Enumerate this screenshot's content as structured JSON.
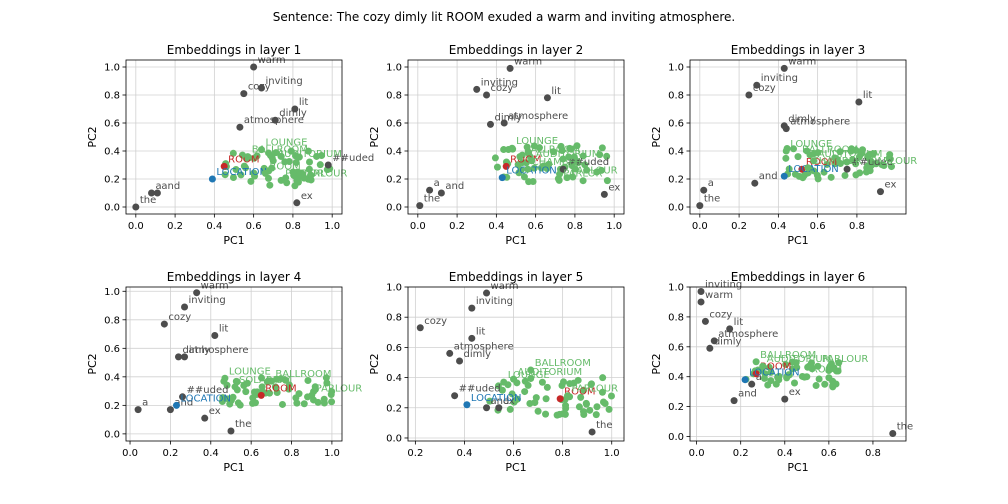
{
  "figure": {
    "suptitle": "Sentence: The cozy dimly lit ROOM exuded a warm and inviting atmosphere."
  },
  "colors": {
    "context": "#4d4d4d",
    "candidate": "#66bb6a",
    "target": "#c62828",
    "location": "#1f77b4",
    "grid": "#d0d0d0"
  },
  "chart_data": [
    {
      "type": "scatter",
      "title": "Embeddings in layer 1",
      "xlabel": "PC1",
      "ylabel": "PC2",
      "xlim": [
        -0.05,
        1.05
      ],
      "ylim": [
        -0.05,
        1.05
      ],
      "xticks": [
        "0.0",
        "0.2",
        "0.4",
        "0.6",
        "0.8",
        "1.0"
      ],
      "yticks": [
        "0.0",
        "0.2",
        "0.4",
        "0.6",
        "0.8",
        "1.0"
      ],
      "grid": true,
      "points": [
        {
          "label": "the",
          "x": 0.0,
          "y": 0.0,
          "kind": "context"
        },
        {
          "label": "a",
          "x": 0.08,
          "y": 0.1,
          "kind": "context"
        },
        {
          "label": "and",
          "x": 0.11,
          "y": 0.1,
          "kind": "context"
        },
        {
          "label": "warm",
          "x": 0.6,
          "y": 1.0,
          "kind": "context"
        },
        {
          "label": "cozy",
          "x": 0.55,
          "y": 0.81,
          "kind": "context"
        },
        {
          "label": "inviting",
          "x": 0.64,
          "y": 0.85,
          "kind": "context"
        },
        {
          "label": "lit",
          "x": 0.81,
          "y": 0.7,
          "kind": "context"
        },
        {
          "label": "dimly",
          "x": 0.71,
          "y": 0.62,
          "kind": "context"
        },
        {
          "label": "atmosphere",
          "x": 0.53,
          "y": 0.57,
          "kind": "context"
        },
        {
          "label": "##uded",
          "x": 0.98,
          "y": 0.3,
          "kind": "context"
        },
        {
          "label": "ex",
          "x": 0.82,
          "y": 0.03,
          "kind": "context"
        },
        {
          "label": "ROOM",
          "x": 0.45,
          "y": 0.29,
          "kind": "target"
        },
        {
          "label": "LOCATION",
          "x": 0.39,
          "y": 0.2,
          "kind": "location"
        },
        {
          "label": "LOUNGE",
          "x": 0.64,
          "y": 0.41,
          "kind": "candidate"
        },
        {
          "label": "BALLROOM",
          "x": 0.57,
          "y": 0.36,
          "kind": "candidate"
        },
        {
          "label": "AUDITORIUM",
          "x": 0.7,
          "y": 0.33,
          "kind": "candidate"
        },
        {
          "label": "ROOM",
          "x": 0.66,
          "y": 0.24,
          "kind": "candidate"
        },
        {
          "label": "PARLOUR",
          "x": 0.82,
          "y": 0.19,
          "kind": "candidate"
        },
        {
          "label": "PARLOR",
          "x": 0.74,
          "y": 0.19,
          "kind": "candidate"
        }
      ],
      "cluster": {
        "x": [
          0.45,
          0.99
        ],
        "y": [
          0.15,
          0.4
        ],
        "n": 60
      }
    },
    {
      "type": "scatter",
      "title": "Embeddings in layer 2",
      "xlabel": "PC1",
      "ylabel": "PC2",
      "xlim": [
        -0.05,
        1.05
      ],
      "ylim": [
        -0.05,
        1.05
      ],
      "xticks": [
        "0.0",
        "0.2",
        "0.4",
        "0.6",
        "0.8",
        "1.0"
      ],
      "yticks": [
        "0.0",
        "0.2",
        "0.4",
        "0.6",
        "0.8",
        "1.0"
      ],
      "grid": true,
      "points": [
        {
          "label": "the",
          "x": 0.01,
          "y": 0.01,
          "kind": "context"
        },
        {
          "label": "a",
          "x": 0.06,
          "y": 0.12,
          "kind": "context"
        },
        {
          "label": "and",
          "x": 0.12,
          "y": 0.1,
          "kind": "context"
        },
        {
          "label": "warm",
          "x": 0.47,
          "y": 0.99,
          "kind": "context"
        },
        {
          "label": "inviting",
          "x": 0.3,
          "y": 0.84,
          "kind": "context"
        },
        {
          "label": "cozy",
          "x": 0.35,
          "y": 0.8,
          "kind": "context"
        },
        {
          "label": "lit",
          "x": 0.66,
          "y": 0.78,
          "kind": "context"
        },
        {
          "label": "dimly",
          "x": 0.37,
          "y": 0.59,
          "kind": "context"
        },
        {
          "label": "atmosphere",
          "x": 0.44,
          "y": 0.6,
          "kind": "context"
        },
        {
          "label": "##uded",
          "x": 0.74,
          "y": 0.27,
          "kind": "context"
        },
        {
          "label": "ex",
          "x": 0.95,
          "y": 0.09,
          "kind": "context"
        },
        {
          "label": "ROOM",
          "x": 0.45,
          "y": 0.29,
          "kind": "target"
        },
        {
          "label": "LOCATION",
          "x": 0.43,
          "y": 0.21,
          "kind": "location"
        },
        {
          "label": "LOUNGE",
          "x": 0.48,
          "y": 0.42,
          "kind": "candidate"
        },
        {
          "label": "BALLROOM",
          "x": 0.52,
          "y": 0.36,
          "kind": "candidate"
        },
        {
          "label": "AUDITORIUM",
          "x": 0.58,
          "y": 0.33,
          "kind": "candidate"
        },
        {
          "label": "CHAMBER",
          "x": 0.56,
          "y": 0.27,
          "kind": "candidate"
        },
        {
          "label": "PARLOUR",
          "x": 0.76,
          "y": 0.21,
          "kind": "candidate"
        },
        {
          "label": "PARLOR",
          "x": 0.72,
          "y": 0.19,
          "kind": "candidate"
        }
      ],
      "cluster": {
        "x": [
          0.38,
          0.98
        ],
        "y": [
          0.18,
          0.44
        ],
        "n": 60
      }
    },
    {
      "type": "scatter",
      "title": "Embeddings in layer 3",
      "xlabel": "PC1",
      "ylabel": "PC2",
      "xlim": [
        -0.05,
        1.05
      ],
      "ylim": [
        -0.05,
        1.05
      ],
      "xticks": [
        "0.0",
        "0.2",
        "0.4",
        "0.6",
        "0.8"
      ],
      "yticks": [
        "0.0",
        "0.2",
        "0.4",
        "0.6",
        "0.8",
        "1.0"
      ],
      "grid": true,
      "points": [
        {
          "label": "the",
          "x": 0.0,
          "y": 0.01,
          "kind": "context"
        },
        {
          "label": "a",
          "x": 0.02,
          "y": 0.12,
          "kind": "context"
        },
        {
          "label": "and",
          "x": 0.28,
          "y": 0.17,
          "kind": "context"
        },
        {
          "label": "warm",
          "x": 0.43,
          "y": 0.99,
          "kind": "context"
        },
        {
          "label": "inviting",
          "x": 0.29,
          "y": 0.87,
          "kind": "context"
        },
        {
          "label": "cozy",
          "x": 0.25,
          "y": 0.8,
          "kind": "context"
        },
        {
          "label": "lit",
          "x": 0.81,
          "y": 0.75,
          "kind": "context"
        },
        {
          "label": "dimly",
          "x": 0.43,
          "y": 0.58,
          "kind": "context"
        },
        {
          "label": "atmosphere",
          "x": 0.44,
          "y": 0.56,
          "kind": "context"
        },
        {
          "label": "##uded",
          "x": 0.75,
          "y": 0.27,
          "kind": "context"
        },
        {
          "label": "ex",
          "x": 0.92,
          "y": 0.11,
          "kind": "context"
        },
        {
          "label": "ROOM",
          "x": 0.52,
          "y": 0.27,
          "kind": "target"
        },
        {
          "label": "LOCATION",
          "x": 0.43,
          "y": 0.22,
          "kind": "location"
        },
        {
          "label": "LOUNGE",
          "x": 0.44,
          "y": 0.4,
          "kind": "candidate"
        },
        {
          "label": "BALLROOM",
          "x": 0.5,
          "y": 0.36,
          "kind": "candidate"
        },
        {
          "label": "AUDITORIUM",
          "x": 0.58,
          "y": 0.33,
          "kind": "candidate"
        },
        {
          "label": "CHAMBER",
          "x": 0.55,
          "y": 0.28,
          "kind": "candidate"
        },
        {
          "label": "PARLOUR",
          "x": 0.85,
          "y": 0.28,
          "kind": "candidate"
        }
      ],
      "cluster": {
        "x": [
          0.42,
          0.98
        ],
        "y": [
          0.2,
          0.42
        ],
        "n": 55
      }
    },
    {
      "type": "scatter",
      "title": "Embeddings in layer 4",
      "xlabel": "PC1",
      "ylabel": "PC2",
      "xlim": [
        -0.02,
        1.05
      ],
      "ylim": [
        -0.05,
        1.03
      ],
      "xticks": [
        "0.0",
        "0.2",
        "0.4",
        "0.6",
        "0.8",
        "1.0"
      ],
      "yticks": [
        "0.0",
        "0.2",
        "0.4",
        "0.6",
        "0.8",
        "1.0"
      ],
      "grid": true,
      "points": [
        {
          "label": "a",
          "x": 0.04,
          "y": 0.17,
          "kind": "context"
        },
        {
          "label": "and",
          "x": 0.2,
          "y": 0.17,
          "kind": "context"
        },
        {
          "label": "the",
          "x": 0.5,
          "y": 0.02,
          "kind": "context"
        },
        {
          "label": "ex",
          "x": 0.37,
          "y": 0.11,
          "kind": "context"
        },
        {
          "label": "##uded",
          "x": 0.26,
          "y": 0.26,
          "kind": "context"
        },
        {
          "label": "warm",
          "x": 0.33,
          "y": 0.99,
          "kind": "context"
        },
        {
          "label": "inviting",
          "x": 0.27,
          "y": 0.89,
          "kind": "context"
        },
        {
          "label": "cozy",
          "x": 0.17,
          "y": 0.77,
          "kind": "context"
        },
        {
          "label": "lit",
          "x": 0.42,
          "y": 0.69,
          "kind": "context"
        },
        {
          "label": "dimly",
          "x": 0.24,
          "y": 0.54,
          "kind": "context"
        },
        {
          "label": "atmosphere",
          "x": 0.27,
          "y": 0.54,
          "kind": "context"
        },
        {
          "label": "ROOM",
          "x": 0.65,
          "y": 0.27,
          "kind": "target"
        },
        {
          "label": "LOCATION",
          "x": 0.23,
          "y": 0.2,
          "kind": "location"
        },
        {
          "label": "LOUNGE",
          "x": 0.47,
          "y": 0.39,
          "kind": "candidate"
        },
        {
          "label": "BALLROOM",
          "x": 0.7,
          "y": 0.37,
          "kind": "candidate"
        },
        {
          "label": "SOLARIUM",
          "x": 0.52,
          "y": 0.33,
          "kind": "candidate"
        },
        {
          "label": "PARLOUR",
          "x": 0.9,
          "y": 0.27,
          "kind": "candidate"
        }
      ],
      "cluster": {
        "x": [
          0.45,
          1.02
        ],
        "y": [
          0.2,
          0.4
        ],
        "n": 55
      }
    },
    {
      "type": "scatter",
      "title": "Embeddings in layer 5",
      "xlabel": "PC1",
      "ylabel": "PC2",
      "xlim": [
        0.17,
        1.05
      ],
      "ylim": [
        -0.02,
        1.0
      ],
      "xticks": [
        "0.2",
        "0.4",
        "0.6",
        "0.8",
        "1.0"
      ],
      "yticks": [
        "0.0",
        "0.2",
        "0.4",
        "0.6",
        "0.8",
        "1.0"
      ],
      "grid": true,
      "points": [
        {
          "label": "cozy",
          "x": 0.22,
          "y": 0.73,
          "kind": "context"
        },
        {
          "label": "warm",
          "x": 0.49,
          "y": 0.96,
          "kind": "context"
        },
        {
          "label": "inviting",
          "x": 0.43,
          "y": 0.86,
          "kind": "context"
        },
        {
          "label": "lit",
          "x": 0.43,
          "y": 0.66,
          "kind": "context"
        },
        {
          "label": "atmosphere",
          "x": 0.34,
          "y": 0.56,
          "kind": "context"
        },
        {
          "label": "dimly",
          "x": 0.38,
          "y": 0.51,
          "kind": "context"
        },
        {
          "label": "##uded",
          "x": 0.36,
          "y": 0.28,
          "kind": "context"
        },
        {
          "label": "and",
          "x": 0.49,
          "y": 0.2,
          "kind": "context"
        },
        {
          "label": "ex",
          "x": 0.54,
          "y": 0.2,
          "kind": "context"
        },
        {
          "label": "the",
          "x": 0.92,
          "y": 0.04,
          "kind": "context"
        },
        {
          "label": "ROOM",
          "x": 0.79,
          "y": 0.26,
          "kind": "target"
        },
        {
          "label": "LOCATION",
          "x": 0.41,
          "y": 0.22,
          "kind": "location"
        },
        {
          "label": "BALLROOM",
          "x": 0.67,
          "y": 0.45,
          "kind": "candidate"
        },
        {
          "label": "AUDITORIUM",
          "x": 0.6,
          "y": 0.39,
          "kind": "candidate"
        },
        {
          "label": "LOUNGE",
          "x": 0.56,
          "y": 0.37,
          "kind": "candidate"
        },
        {
          "label": "PARLOUR",
          "x": 0.82,
          "y": 0.28,
          "kind": "candidate"
        }
      ],
      "cluster": {
        "x": [
          0.5,
          1.02
        ],
        "y": [
          0.15,
          0.4
        ],
        "n": 55
      }
    },
    {
      "type": "scatter",
      "title": "Embeddings in layer 6",
      "xlabel": "PC1",
      "ylabel": "PC2",
      "xlim": [
        -0.03,
        0.95
      ],
      "ylim": [
        -0.03,
        1.0
      ],
      "xticks": [
        "0.0",
        "0.2",
        "0.4",
        "0.6",
        "0.8"
      ],
      "yticks": [
        "0.0",
        "0.2",
        "0.4",
        "0.6",
        "0.8",
        "1.0"
      ],
      "grid": true,
      "points": [
        {
          "label": "inviting",
          "x": 0.02,
          "y": 0.97,
          "kind": "context"
        },
        {
          "label": "warm",
          "x": 0.02,
          "y": 0.9,
          "kind": "context"
        },
        {
          "label": "cozy",
          "x": 0.04,
          "y": 0.77,
          "kind": "context"
        },
        {
          "label": "lit",
          "x": 0.15,
          "y": 0.72,
          "kind": "context"
        },
        {
          "label": "atmosphere",
          "x": 0.08,
          "y": 0.64,
          "kind": "context"
        },
        {
          "label": "dimly",
          "x": 0.06,
          "y": 0.59,
          "kind": "context"
        },
        {
          "label": "a",
          "x": 0.25,
          "y": 0.35,
          "kind": "context"
        },
        {
          "label": "and",
          "x": 0.17,
          "y": 0.24,
          "kind": "context"
        },
        {
          "label": "ex",
          "x": 0.4,
          "y": 0.25,
          "kind": "context"
        },
        {
          "label": "the",
          "x": 0.89,
          "y": 0.02,
          "kind": "context"
        },
        {
          "label": "ROOM",
          "x": 0.27,
          "y": 0.42,
          "kind": "target"
        },
        {
          "label": "LOCATION",
          "x": 0.22,
          "y": 0.38,
          "kind": "location"
        },
        {
          "label": "BALLROOM",
          "x": 0.27,
          "y": 0.5,
          "kind": "candidate"
        },
        {
          "label": "AUDITORIUM",
          "x": 0.3,
          "y": 0.47,
          "kind": "candidate"
        },
        {
          "label": "PARLOUR",
          "x": 0.55,
          "y": 0.47,
          "kind": "candidate"
        },
        {
          "label": "ROOM",
          "x": 0.5,
          "y": 0.4,
          "kind": "candidate"
        }
      ],
      "cluster": {
        "x": [
          0.22,
          0.65
        ],
        "y": [
          0.33,
          0.5
        ],
        "n": 50
      }
    }
  ]
}
